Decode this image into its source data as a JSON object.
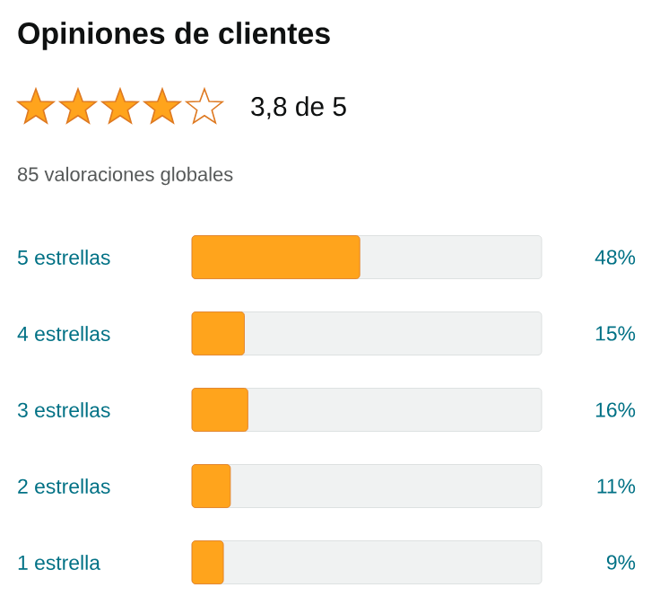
{
  "chart_data": {
    "type": "bar",
    "orientation": "horizontal",
    "title": "Opiniones de clientes",
    "subtitle": "3,8 de 5",
    "annotations": [
      "85 valoraciones globales"
    ],
    "categories": [
      "5 estrellas",
      "4 estrellas",
      "3 estrellas",
      "2 estrellas",
      "1 estrella"
    ],
    "values": [
      48,
      15,
      16,
      11,
      9
    ],
    "value_labels": [
      "48%",
      "15%",
      "16%",
      "11%",
      "9%"
    ],
    "color": "#ffa41c",
    "xlim": [
      0,
      100
    ],
    "tick_labels": "y"
  }
}
